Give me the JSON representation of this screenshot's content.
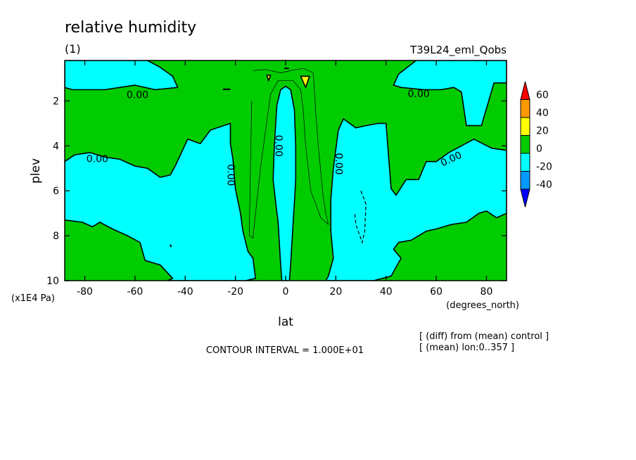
{
  "chart_data": {
    "type": "contour",
    "title": "relative humidity",
    "subtitle": "(1)",
    "run_label": "T39L24_eml_Qobs",
    "xlabel": "lat",
    "xunits": "(degrees_north)",
    "ylabel": "plev",
    "yunits": "(x1E4 Pa)",
    "xlim": [
      -88,
      88
    ],
    "ylim": [
      10,
      0.2
    ],
    "x_ticks": [
      -80,
      -60,
      -40,
      -20,
      0,
      20,
      40,
      60,
      80
    ],
    "y_ticks": [
      2,
      4,
      6,
      8,
      10
    ],
    "contour_labels": [
      "0.00",
      "0.00",
      "0.00",
      "0.00",
      "0.00",
      "0.00",
      "0.00"
    ],
    "contour_interval_text": "CONTOUR INTERVAL = 1.000E+01",
    "notes": [
      "[ (diff) from (mean) control ]",
      "[ (mean) lon:0..357 ]"
    ],
    "colorbar": {
      "levels": [
        60,
        40,
        20,
        0,
        -20,
        -40
      ],
      "colors": [
        "#ff0000",
        "#ff9900",
        "#ffff00",
        "#00cc00",
        "#00ffff",
        "#0099ff",
        "#0000ff"
      ]
    },
    "regions": [
      {
        "class": "neg",
        "color": "#00ffff",
        "points": [
          [
            -88,
            0.2
          ],
          [
            -55,
            0.2
          ],
          [
            -50,
            0.5
          ],
          [
            -45,
            0.9
          ],
          [
            -43,
            1.4
          ],
          [
            -52,
            1.5
          ],
          [
            -60,
            1.3
          ],
          [
            -72,
            1.5
          ],
          [
            -85,
            1.5
          ],
          [
            -88,
            1.4
          ]
        ]
      },
      {
        "class": "neg",
        "color": "#00ffff",
        "points": [
          [
            -88,
            4.7
          ],
          [
            -84,
            4.4
          ],
          [
            -78,
            4.3
          ],
          [
            -72,
            4.5
          ],
          [
            -66,
            4.6
          ],
          [
            -60,
            4.9
          ],
          [
            -55,
            5.0
          ],
          [
            -50,
            5.4
          ],
          [
            -46,
            5.3
          ],
          [
            -44,
            4.9
          ],
          [
            -39,
            3.7
          ],
          [
            -34,
            3.9
          ],
          [
            -30,
            3.3
          ],
          [
            -22,
            3.0
          ],
          [
            -22,
            3.9
          ],
          [
            -21,
            4.6
          ],
          [
            -20,
            5.9
          ],
          [
            -18,
            7.0
          ],
          [
            -17,
            7.8
          ],
          [
            -15,
            8.7
          ],
          [
            -13,
            9.0
          ],
          [
            -12,
            9.9
          ],
          [
            -16,
            10
          ],
          [
            -47,
            10
          ],
          [
            -45,
            9.9
          ],
          [
            -50,
            9.3
          ],
          [
            -56,
            9.1
          ],
          [
            -58,
            8.3
          ],
          [
            -63,
            8.0
          ],
          [
            -69,
            7.7
          ],
          [
            -74,
            7.4
          ],
          [
            -77,
            7.6
          ],
          [
            -81,
            7.4
          ],
          [
            -88,
            7.3
          ]
        ]
      },
      {
        "class": "neg",
        "color": "#00ffff",
        "points": [
          [
            -1.5,
            10
          ],
          [
            -2,
            9.3
          ],
          [
            -3,
            7.4
          ],
          [
            -4,
            6.5
          ],
          [
            -5,
            5.5
          ],
          [
            -4.5,
            4.0
          ],
          [
            -3.5,
            2.2
          ],
          [
            -2,
            1.5
          ],
          [
            0,
            1.35
          ],
          [
            2,
            1.5
          ],
          [
            3.5,
            2.4
          ],
          [
            4,
            4.0
          ],
          [
            4,
            5.5
          ],
          [
            3.5,
            6.5
          ],
          [
            3,
            7.4
          ],
          [
            2,
            9.3
          ],
          [
            1.5,
            10
          ]
        ]
      },
      {
        "class": "neg",
        "color": "#00ffff",
        "points": [
          [
            16,
            10
          ],
          [
            17,
            9.8
          ],
          [
            19,
            9.0
          ],
          [
            18,
            7.8
          ],
          [
            18,
            6.4
          ],
          [
            19,
            5.0
          ],
          [
            21,
            3.3
          ],
          [
            23,
            2.8
          ],
          [
            28,
            3.2
          ],
          [
            32,
            3.1
          ],
          [
            37,
            3.0
          ],
          [
            40,
            3.0
          ],
          [
            42,
            5.9
          ],
          [
            44,
            6.2
          ],
          [
            48,
            5.5
          ],
          [
            53,
            5.5
          ],
          [
            56,
            4.7
          ],
          [
            60,
            4.7
          ],
          [
            65,
            4.3
          ],
          [
            70,
            4.0
          ],
          [
            75,
            3.7
          ],
          [
            82,
            4.1
          ],
          [
            88,
            4.2
          ],
          [
            88,
            7.0
          ],
          [
            84,
            7.2
          ],
          [
            80,
            6.9
          ],
          [
            77,
            7.0
          ],
          [
            72,
            7.4
          ],
          [
            66,
            7.5
          ],
          [
            60,
            7.7
          ],
          [
            56,
            7.8
          ],
          [
            50,
            8.2
          ],
          [
            45,
            8.3
          ],
          [
            43,
            8.6
          ],
          [
            46,
            9.0
          ],
          [
            42,
            9.8
          ],
          [
            35,
            10
          ]
        ]
      },
      {
        "class": "neg",
        "color": "#00ffff",
        "points": [
          [
            88,
            0.2
          ],
          [
            52,
            0.2
          ],
          [
            45,
            0.8
          ],
          [
            43,
            1.3
          ],
          [
            46,
            1.4
          ],
          [
            55,
            1.5
          ],
          [
            62,
            1.5
          ],
          [
            67,
            1.4
          ],
          [
            70,
            1.6
          ],
          [
            72,
            3.1
          ],
          [
            78,
            3.1
          ],
          [
            83,
            1.2
          ],
          [
            88,
            1.2
          ]
        ]
      },
      {
        "class": "line",
        "stroke": "#000000",
        "width": 0.7,
        "dashed": false,
        "points": [
          [
            -13,
            0.65
          ],
          [
            -8,
            0.6
          ],
          [
            -2,
            0.75
          ],
          [
            2,
            0.65
          ],
          [
            7,
            0.55
          ],
          [
            11,
            0.75
          ],
          [
            12,
            2.5
          ],
          [
            13,
            4.0
          ],
          [
            15,
            6.3
          ],
          [
            16,
            7.0
          ],
          [
            17,
            7.5
          ],
          [
            14,
            7.2
          ],
          [
            10,
            6.0
          ],
          [
            8,
            4.0
          ],
          [
            7,
            2.4
          ],
          [
            6,
            1.5
          ],
          [
            3,
            1.1
          ],
          [
            -3,
            1.1
          ],
          [
            -6,
            1.7
          ],
          [
            -8,
            3.3
          ],
          [
            -10,
            5.0
          ],
          [
            -12,
            7.0
          ],
          [
            -13,
            8.1
          ],
          [
            -14.5,
            8.0
          ],
          [
            -14,
            5.0
          ],
          [
            -13.5,
            2.0
          ]
        ]
      },
      {
        "class": "line",
        "stroke": "#000000",
        "width": 1.2,
        "dashed": true,
        "points": [
          [
            30,
            6.0
          ],
          [
            32,
            6.6
          ],
          [
            31.5,
            7.8
          ],
          [
            30.5,
            8.3
          ],
          [
            28,
            7.5
          ],
          [
            27.5,
            7.0
          ]
        ]
      },
      {
        "class": "pos",
        "color": "#ffff00",
        "points": [
          [
            6,
            0.9
          ],
          [
            9.5,
            0.9
          ],
          [
            8,
            1.4
          ]
        ]
      },
      {
        "class": "pos",
        "color": "#ffff00",
        "points": [
          [
            -7.5,
            0.85
          ],
          [
            -6,
            0.85
          ],
          [
            -6.8,
            1.1
          ]
        ]
      },
      {
        "class": "line",
        "stroke": "#000000",
        "width": 2,
        "dashed": false,
        "points": [
          [
            -0.6,
            0.55
          ],
          [
            1.4,
            0.55
          ]
        ]
      },
      {
        "class": "line",
        "stroke": "#000000",
        "width": 2,
        "dashed": false,
        "points": [
          [
            -25,
            1.48
          ],
          [
            -22,
            1.48
          ]
        ]
      },
      {
        "class": "line",
        "stroke": "#000000",
        "width": 2,
        "dashed": false,
        "points": [
          [
            -46,
            8.4
          ],
          [
            -45.5,
            8.5
          ]
        ]
      }
    ],
    "label_positions": [
      {
        "x": -59,
        "y": 1.75,
        "rotate": 0
      },
      {
        "x": -75,
        "y": 4.6,
        "rotate": 0
      },
      {
        "x": -22,
        "y": 5.3,
        "rotate": 90
      },
      {
        "x": -3,
        "y": 4.0,
        "rotate": 90
      },
      {
        "x": 21,
        "y": 4.8,
        "rotate": 90
      },
      {
        "x": 53,
        "y": 1.7,
        "rotate": 0
      },
      {
        "x": 66,
        "y": 4.6,
        "rotate": -25
      }
    ]
  }
}
